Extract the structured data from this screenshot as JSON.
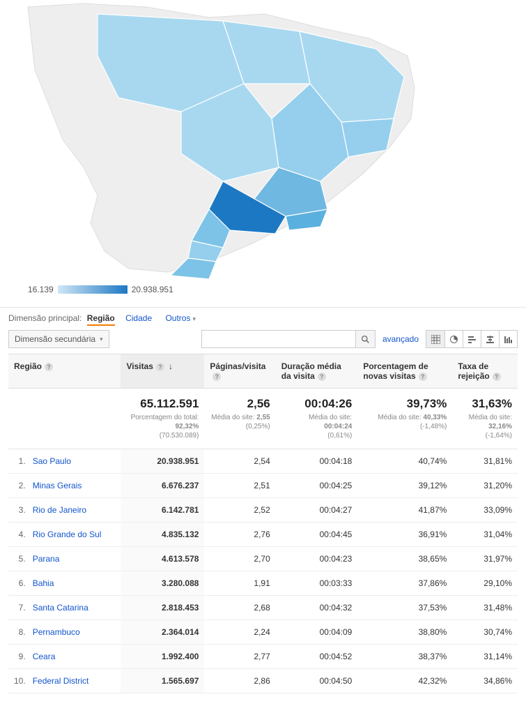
{
  "map": {
    "legend_min": "16.139",
    "legend_max": "20.938.951",
    "colors": {
      "background": "#ffffff",
      "land_base": "#eeeeee",
      "border": "#cccccc",
      "scale_light": "#cfe7f5",
      "scale_dark": "#1d78c4",
      "sp": "#1d78c4",
      "mg": "#6fb8e1",
      "rj": "#5ab0de",
      "rs": "#7dc2e7",
      "pr": "#7dc2e7",
      "ba": "#96cfed",
      "sc": "#96cfed",
      "others": "#a8d8f0"
    }
  },
  "controls": {
    "dim_primary_label": "Dimensão principal:",
    "dim_active": "Região",
    "dim_link_city": "Cidade",
    "dim_link_other": "Outros",
    "sec_dd": "Dimensão secundária",
    "search_placeholder": "",
    "advanced": "avançado"
  },
  "table": {
    "headers": {
      "regiao": "Região",
      "visitas": "Visitas",
      "paginas": "Páginas/visita",
      "duracao": "Duração média da visita",
      "novas": "Porcentagem de novas visitas",
      "rejeicao": "Taxa de rejeição"
    },
    "summary": {
      "visitas_big": "65.112.591",
      "visitas_sub1": "Porcentagem do total:",
      "visitas_sub2": "92,32%",
      "visitas_sub3": "(70.530.089)",
      "paginas_big": "2,56",
      "paginas_sub1": "Média do site:",
      "paginas_sub2": "2,55",
      "paginas_sub3": "(0,25%)",
      "duracao_big": "00:04:26",
      "duracao_sub1": "Média do site:",
      "duracao_sub2": "00:04:24",
      "duracao_sub3": "(0,61%)",
      "novas_big": "39,73%",
      "novas_sub1": "Média do site:",
      "novas_sub2": "40,33%",
      "novas_sub3": "(-1,48%)",
      "rejeicao_big": "31,63%",
      "rejeicao_sub1": "Média do site:",
      "rejeicao_sub2": "32,16%",
      "rejeicao_sub3": "(-1,64%)"
    },
    "rows": [
      {
        "n": "1.",
        "regiao": "Sao Paulo",
        "visitas": "20.938.951",
        "paginas": "2,54",
        "duracao": "00:04:18",
        "novas": "40,74%",
        "rejeicao": "31,81%"
      },
      {
        "n": "2.",
        "regiao": "Minas Gerais",
        "visitas": "6.676.237",
        "paginas": "2,51",
        "duracao": "00:04:25",
        "novas": "39,12%",
        "rejeicao": "31,20%"
      },
      {
        "n": "3.",
        "regiao": "Rio de Janeiro",
        "visitas": "6.142.781",
        "paginas": "2,52",
        "duracao": "00:04:27",
        "novas": "41,87%",
        "rejeicao": "33,09%"
      },
      {
        "n": "4.",
        "regiao": "Rio Grande do Sul",
        "visitas": "4.835.132",
        "paginas": "2,76",
        "duracao": "00:04:45",
        "novas": "36,91%",
        "rejeicao": "31,04%"
      },
      {
        "n": "5.",
        "regiao": "Parana",
        "visitas": "4.613.578",
        "paginas": "2,70",
        "duracao": "00:04:23",
        "novas": "38,65%",
        "rejeicao": "31,97%"
      },
      {
        "n": "6.",
        "regiao": "Bahia",
        "visitas": "3.280.088",
        "paginas": "1,91",
        "duracao": "00:03:33",
        "novas": "37,86%",
        "rejeicao": "29,10%"
      },
      {
        "n": "7.",
        "regiao": "Santa Catarina",
        "visitas": "2.818.453",
        "paginas": "2,68",
        "duracao": "00:04:32",
        "novas": "37,53%",
        "rejeicao": "31,48%"
      },
      {
        "n": "8.",
        "regiao": "Pernambuco",
        "visitas": "2.364.014",
        "paginas": "2,24",
        "duracao": "00:04:09",
        "novas": "38,80%",
        "rejeicao": "30,74%"
      },
      {
        "n": "9.",
        "regiao": "Ceara",
        "visitas": "1.992.400",
        "paginas": "2,77",
        "duracao": "00:04:52",
        "novas": "38,37%",
        "rejeicao": "31,14%"
      },
      {
        "n": "10.",
        "regiao": "Federal District",
        "visitas": "1.565.697",
        "paginas": "2,86",
        "duracao": "00:04:50",
        "novas": "42,32%",
        "rejeicao": "34,86%"
      }
    ]
  }
}
